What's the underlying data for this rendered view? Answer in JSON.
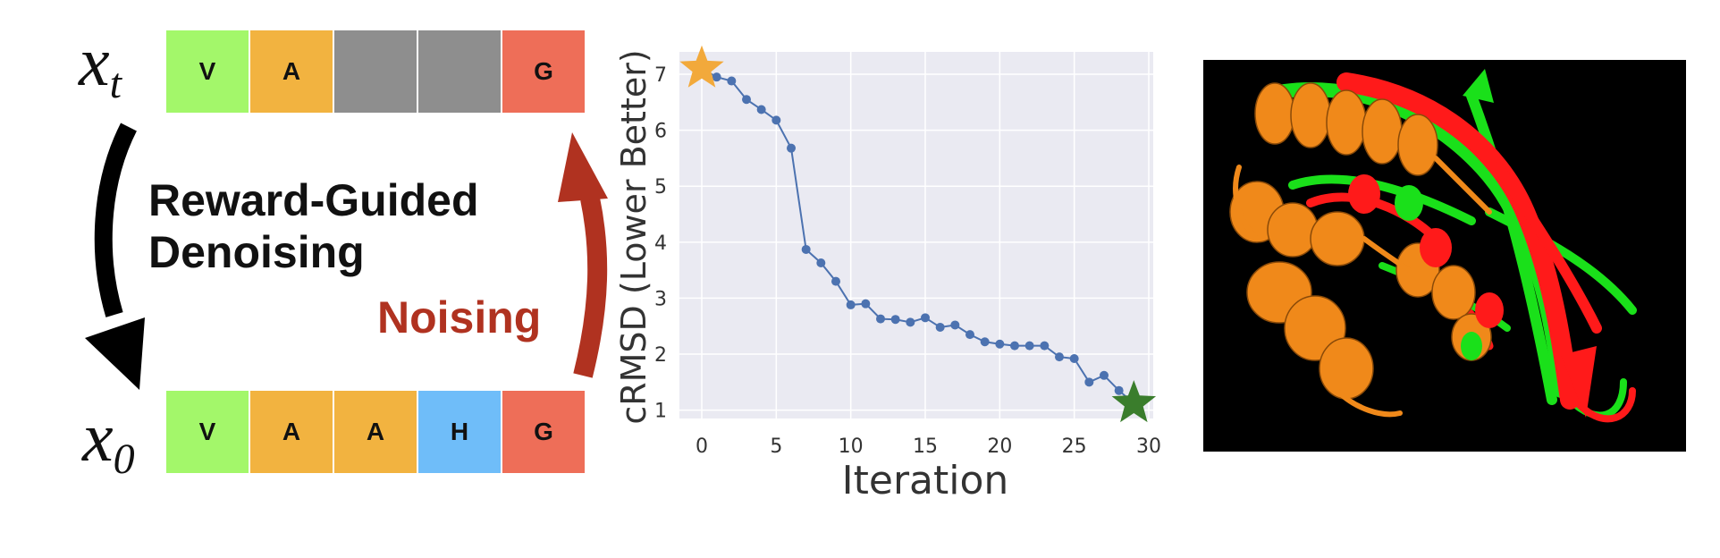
{
  "diagram": {
    "xt_label": "x",
    "xt_sub": "t",
    "x0_label": "x",
    "x0_sub": "0",
    "top_tokens": [
      {
        "text": "V",
        "color": "#a3f76a"
      },
      {
        "text": "A",
        "color": "#f2b340"
      },
      {
        "text": "",
        "color": "#8e8e8e"
      },
      {
        "text": "",
        "color": "#8e8e8e"
      },
      {
        "text": "G",
        "color": "#ee6e58"
      }
    ],
    "bottom_tokens": [
      {
        "text": "V",
        "color": "#a3f76a"
      },
      {
        "text": "A",
        "color": "#f2b340"
      },
      {
        "text": "A",
        "color": "#f2b340"
      },
      {
        "text": "H",
        "color": "#6fbdf9"
      },
      {
        "text": "G",
        "color": "#ee6e58"
      }
    ],
    "denoise_label_line1": "Reward-Guided",
    "denoise_label_line2": "Denoising",
    "noise_label": "Noising",
    "denoise_arrow_color": "#000000",
    "noise_arrow_color": "#b03220"
  },
  "chart_data": {
    "type": "line",
    "xlabel": "Iteration",
    "ylabel": "cRMSD (Lower Better)",
    "xlim": [
      -1.5,
      30.3
    ],
    "ylim": [
      0.85,
      7.4
    ],
    "xticks": [
      0,
      5,
      10,
      15,
      20,
      25,
      30
    ],
    "yticks": [
      1,
      2,
      3,
      4,
      5,
      6,
      7
    ],
    "grid": true,
    "line_color": "#4c72b0",
    "background": "#eaeaf2",
    "start_marker_color": "#f2a93b",
    "end_marker_color": "#3a7d2c",
    "x": [
      0,
      1,
      2,
      3,
      4,
      5,
      6,
      7,
      8,
      9,
      10,
      11,
      12,
      13,
      14,
      15,
      16,
      17,
      18,
      19,
      20,
      21,
      22,
      23,
      24,
      25,
      26,
      27,
      28,
      29
    ],
    "y": [
      7.1,
      6.95,
      6.88,
      6.55,
      6.37,
      6.18,
      5.68,
      3.87,
      3.63,
      3.3,
      2.88,
      2.9,
      2.63,
      2.62,
      2.57,
      2.65,
      2.48,
      2.52,
      2.35,
      2.22,
      2.18,
      2.15,
      2.15,
      2.15,
      1.95,
      1.92,
      1.5,
      1.62,
      1.35,
      1.12
    ]
  },
  "protein": {
    "background": "#000000",
    "colors": {
      "helix_a": "#f0891a",
      "predicted": "#ff1a1a",
      "reference": "#1ae01a"
    }
  }
}
